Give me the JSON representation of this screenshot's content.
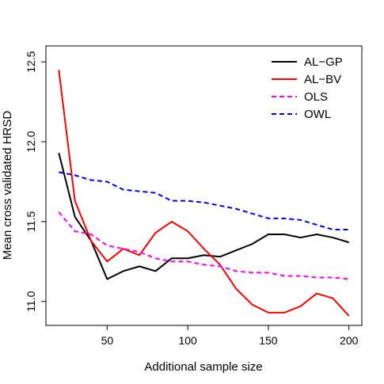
{
  "chart_data": {
    "type": "line",
    "title": "",
    "xlabel": "Additional sample size",
    "ylabel": "Mean cross validated HRSD",
    "xlim": [
      12,
      208
    ],
    "ylim": [
      10.85,
      12.6
    ],
    "xticks": [
      50,
      100,
      150,
      200
    ],
    "yticks": [
      11.0,
      11.5,
      12.0,
      12.5
    ],
    "xtick_labels": [
      "50",
      "100",
      "150",
      "200"
    ],
    "ytick_labels": [
      "11.0",
      "11.5",
      "12.0",
      "12.5"
    ],
    "grid": false,
    "legend_position": "top-right",
    "x": [
      20,
      30,
      40,
      50,
      60,
      70,
      80,
      90,
      100,
      110,
      120,
      130,
      140,
      150,
      160,
      170,
      180,
      190,
      200
    ],
    "series": [
      {
        "name": "AL−GP",
        "color": "#000000",
        "dash": "solid",
        "values": [
          11.93,
          11.53,
          11.38,
          11.14,
          11.19,
          11.22,
          11.19,
          11.27,
          11.27,
          11.29,
          11.28,
          11.32,
          11.36,
          11.42,
          11.42,
          11.4,
          11.42,
          11.4,
          11.37
        ]
      },
      {
        "name": "AL−BV",
        "color": "#ff0000",
        "dash": "solid",
        "values": [
          12.45,
          11.63,
          11.38,
          11.25,
          11.33,
          11.29,
          11.43,
          11.5,
          11.44,
          11.33,
          11.23,
          11.08,
          10.98,
          10.93,
          10.93,
          10.97,
          11.05,
          11.02,
          10.91
        ]
      },
      {
        "name": "OLS",
        "color": "#ff00ff",
        "dash": "dashed",
        "values": [
          11.56,
          11.44,
          11.42,
          11.35,
          11.33,
          11.31,
          11.27,
          11.25,
          11.25,
          11.23,
          11.22,
          11.19,
          11.18,
          11.18,
          11.16,
          11.16,
          11.15,
          11.15,
          11.14
        ]
      },
      {
        "name": "OWL",
        "color": "#0000ff",
        "dash": "dashed",
        "values": [
          11.81,
          11.79,
          11.76,
          11.75,
          11.7,
          11.69,
          11.68,
          11.63,
          11.63,
          11.62,
          11.6,
          11.58,
          11.55,
          11.52,
          11.52,
          11.51,
          11.48,
          11.45,
          11.45
        ]
      }
    ]
  }
}
